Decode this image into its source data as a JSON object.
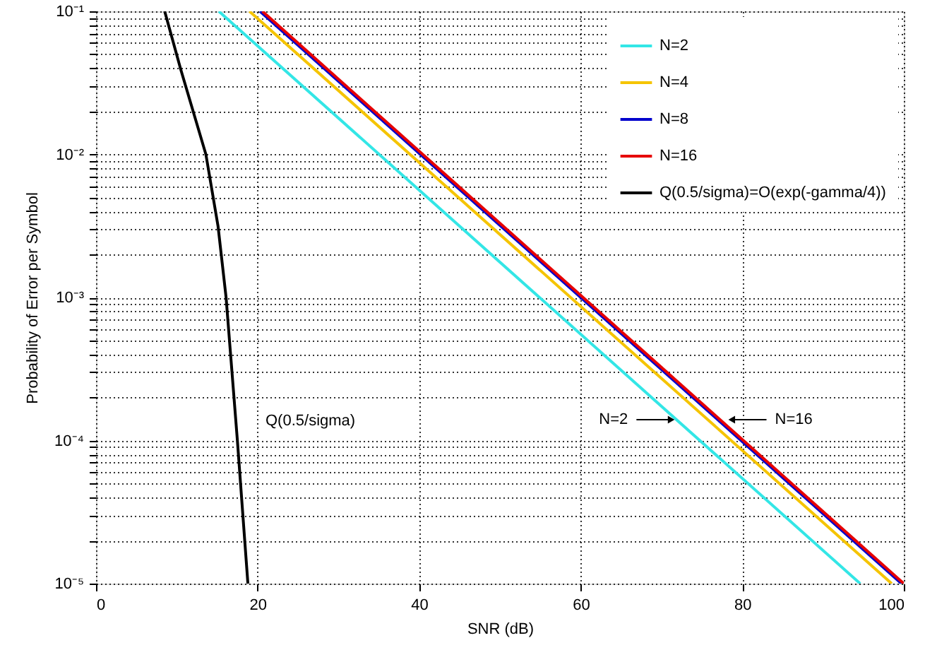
{
  "chart_data": {
    "type": "line",
    "xlabel": "SNR (dB)",
    "ylabel": "Probability of Error per Symbol",
    "xlim": [
      0,
      100
    ],
    "xticks": [
      0,
      20,
      40,
      60,
      80,
      100
    ],
    "ylim": [
      1e-05,
      0.1
    ],
    "log": true,
    "yticks": [
      {
        "value": 1e-05,
        "label": "10⁻⁵"
      },
      {
        "value": 2e-05,
        "label": null
      },
      {
        "value": 3e-05,
        "label": null
      },
      {
        "value": 4e-05,
        "label": null
      },
      {
        "value": 5e-05,
        "label": null
      },
      {
        "value": 6e-05,
        "label": null
      },
      {
        "value": 7e-05,
        "label": null
      },
      {
        "value": 8e-05,
        "label": null
      },
      {
        "value": 9e-05,
        "label": null
      },
      {
        "value": 0.0001,
        "label": "10⁻⁴"
      },
      {
        "value": 0.0002,
        "label": null
      },
      {
        "value": 0.0003,
        "label": null
      },
      {
        "value": 0.0004,
        "label": null
      },
      {
        "value": 0.0005,
        "label": null
      },
      {
        "value": 0.0006,
        "label": null
      },
      {
        "value": 0.0007,
        "label": null
      },
      {
        "value": 0.0008,
        "label": null
      },
      {
        "value": 0.0009,
        "label": null
      },
      {
        "value": 0.001,
        "label": "10⁻³"
      },
      {
        "value": 0.002,
        "label": null
      },
      {
        "value": 0.003,
        "label": null
      },
      {
        "value": 0.004,
        "label": null
      },
      {
        "value": 0.005,
        "label": null
      },
      {
        "value": 0.006,
        "label": null
      },
      {
        "value": 0.007,
        "label": null
      },
      {
        "value": 0.008,
        "label": null
      },
      {
        "value": 0.009,
        "label": null
      },
      {
        "value": 0.01,
        "label": "10⁻²"
      },
      {
        "value": 0.02,
        "label": null
      },
      {
        "value": 0.03,
        "label": null
      },
      {
        "value": 0.04,
        "label": null
      },
      {
        "value": 0.05,
        "label": null
      },
      {
        "value": 0.06,
        "label": null
      },
      {
        "value": 0.07,
        "label": null
      },
      {
        "value": 0.08,
        "label": null
      },
      {
        "value": 0.09,
        "label": null
      },
      {
        "value": 0.1,
        "label": "10⁻¹"
      }
    ],
    "grid": true,
    "legend": "top right",
    "line_style": "solid",
    "marker": "none",
    "series": [
      {
        "name": "N=2",
        "color": "#33e6e6",
        "x": [
          15.2,
          94.6
        ],
        "values": [
          0.1,
          1e-05
        ]
      },
      {
        "name": "N=4",
        "color": "#f5c400",
        "x": [
          19.0,
          98.5
        ],
        "values": [
          0.1,
          1e-05
        ]
      },
      {
        "name": "N=8",
        "color": "#0000cc",
        "x": [
          20.3,
          99.7
        ],
        "values": [
          0.1,
          1e-05
        ]
      },
      {
        "name": "N=16",
        "color": "#e60000",
        "x": [
          20.6,
          100
        ],
        "values": [
          0.1,
          1e-05
        ]
      },
      {
        "name": "Q(0.5/sigma)=O(exp(-gamma/4))",
        "color": "#000000",
        "x": [
          8.5,
          10.5,
          13.6,
          15.1,
          16.1,
          17.5,
          18.8
        ],
        "values": [
          0.1,
          0.039,
          0.01,
          0.00316,
          0.001,
          0.0001,
          1e-05
        ]
      }
    ],
    "annotations": [
      "Q(0.5/sigma)",
      {
        "text": "N=2",
        "x": 71.2,
        "y": 0.00014
      },
      {
        "text": "N=16",
        "x": 78.7,
        "y": 0.00014
      }
    ]
  }
}
